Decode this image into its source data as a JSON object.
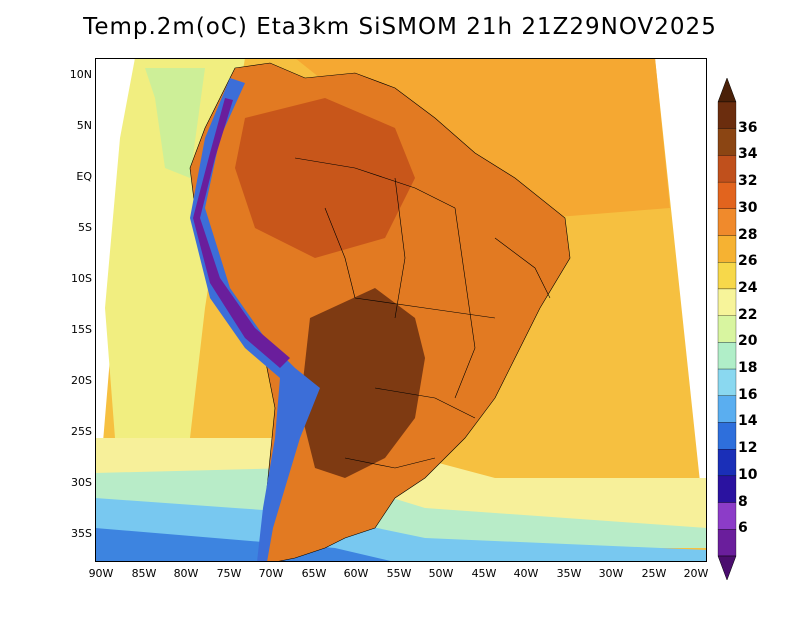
{
  "title": "Temp.2m(oC) Eta3km SiSMOM 21h 21Z29NOV2025",
  "lat_ticks": [
    "10N",
    "5N",
    "EQ",
    "5S",
    "10S",
    "15S",
    "20S",
    "25S",
    "30S",
    "35S"
  ],
  "lon_ticks": [
    "90W",
    "85W",
    "80W",
    "75W",
    "70W",
    "65W",
    "60W",
    "55W",
    "50W",
    "45W",
    "40W",
    "35W",
    "30W",
    "25W",
    "20W"
  ],
  "colorbar": {
    "labels": [
      "36",
      "34",
      "32",
      "30",
      "28",
      "26",
      "24",
      "22",
      "20",
      "18",
      "16",
      "14",
      "12",
      "10",
      "8",
      "6"
    ],
    "colors": [
      "#6b2d0e",
      "#8b4513",
      "#c0501c",
      "#e2641e",
      "#f08a2c",
      "#f6b232",
      "#f7d84a",
      "#f7f49a",
      "#d8f5a0",
      "#b0eec8",
      "#8ad8f0",
      "#5aaef0",
      "#2e6fdc",
      "#1a2fb8",
      "#2a12a0",
      "#8c3cc8",
      "#6a1e9c"
    ],
    "top_arrow_color": "#4a2008",
    "bottom_arrow_color": "#4a0d6e"
  },
  "palette": {
    "ocean_north": "#f6b83a",
    "ocean_south_warm": "#f7d84a",
    "land_hot": "#c05a1c",
    "land_warm": "#e2781e",
    "andes": "#3c6ed8"
  }
}
